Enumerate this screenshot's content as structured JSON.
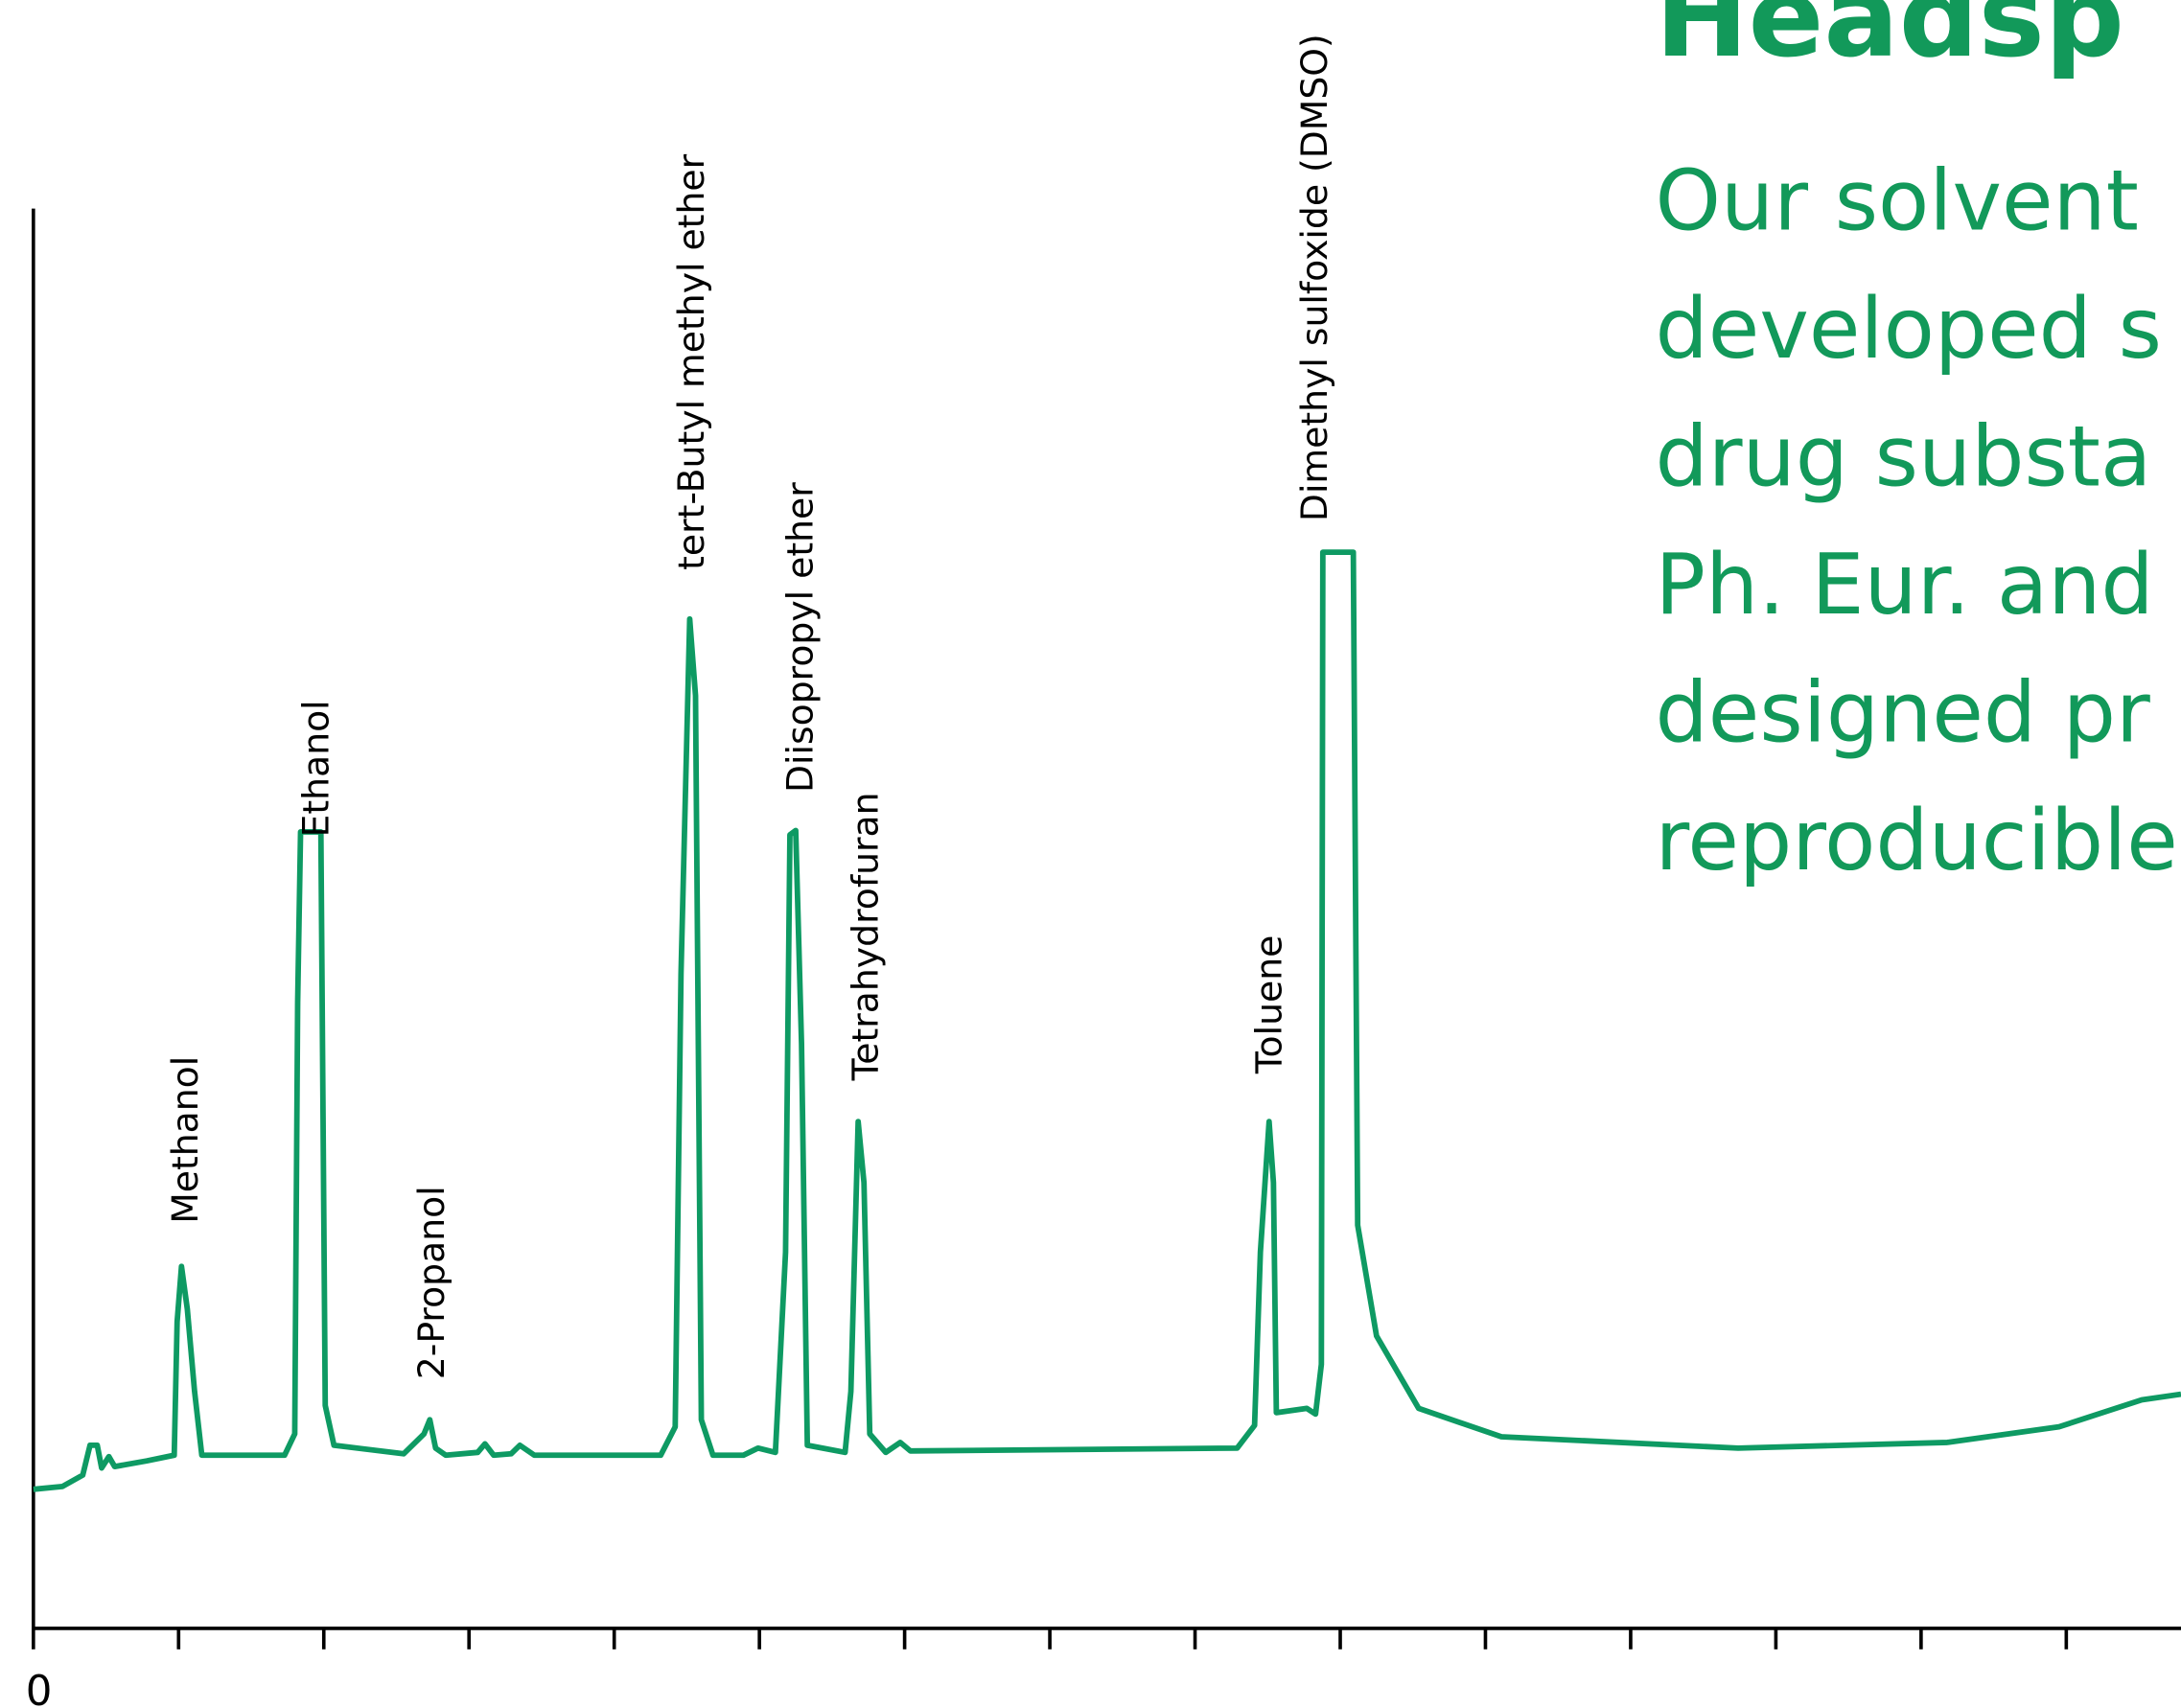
{
  "chart_data": {
    "type": "line",
    "x": [
      0,
      0.2,
      0.34,
      0.39,
      0.44,
      0.47,
      0.52,
      0.56,
      0.78,
      0.97,
      0.99,
      1.02,
      1.06,
      1.11,
      1.16,
      1.73,
      1.8,
      1.82,
      1.84,
      1.98,
      2.01,
      2.07,
      2.55,
      2.69,
      2.73,
      2.77,
      2.84,
      3.06,
      3.11,
      3.17,
      3.29,
      3.35,
      3.45,
      4.32,
      4.42,
      4.46,
      4.52,
      4.56,
      4.6,
      4.68,
      4.89,
      4.99,
      5.11,
      5.18,
      5.21,
      5.25,
      5.29,
      5.33,
      5.59,
      5.63,
      5.68,
      5.72,
      5.76,
      5.87,
      5.97,
      6.04,
      8.29,
      8.41,
      8.45,
      8.51,
      8.54,
      8.56,
      8.77,
      8.83,
      8.87,
      8.88,
      9.09,
      9.12,
      9.25,
      9.54,
      10.11,
      11.74,
      13.18,
      13.95,
      14.52,
      14.79
    ],
    "values": [
      9.8,
      10.0,
      10.8,
      12.9,
      12.9,
      11.3,
      12.1,
      11.4,
      11.8,
      12.2,
      21.6,
      25.5,
      22.5,
      16.7,
      12.2,
      12.2,
      13.7,
      44.1,
      56.1,
      56.1,
      15.7,
      12.9,
      12.3,
      13.7,
      14.7,
      12.7,
      12.2,
      12.4,
      13.0,
      12.2,
      12.3,
      12.9,
      12.2,
      12.2,
      14.2,
      46.1,
      71.1,
      65.7,
      14.7,
      12.2,
      12.2,
      12.7,
      12.4,
      26.5,
      55.9,
      56.2,
      41.2,
      12.9,
      12.4,
      16.7,
      35.7,
      31.4,
      13.7,
      12.4,
      13.1,
      12.5,
      12.7,
      14.3,
      26.5,
      35.7,
      31.4,
      15.2,
      15.5,
      15.1,
      18.6,
      75.8,
      75.8,
      28.4,
      20.6,
      15.5,
      13.5,
      12.7,
      13.1,
      14.2,
      16.1,
      16.5
    ],
    "color": "#0e9a63",
    "xlim": [
      0,
      14.79
    ],
    "ylim": [
      0,
      100
    ],
    "xticks": [
      0
    ],
    "xminor_ticks": [
      1,
      2,
      3,
      4,
      5,
      6,
      7,
      8,
      9,
      10,
      11,
      12,
      13,
      14
    ],
    "peak_labels": [
      "Methanol",
      "Ethanol",
      "2-Propanol",
      "tert-Butyl methyl ether",
      "Diisopropyl ether",
      "Tetrahydrofuran",
      "Toluene",
      "Dimethyl sulfoxide (DMSO)"
    ]
  },
  "text_block": {
    "title": "Headsp",
    "lines": [
      "Our solvent",
      "developed s",
      "drug substa",
      "Ph. Eur. and",
      "designed pr",
      "reproducible"
    ]
  }
}
